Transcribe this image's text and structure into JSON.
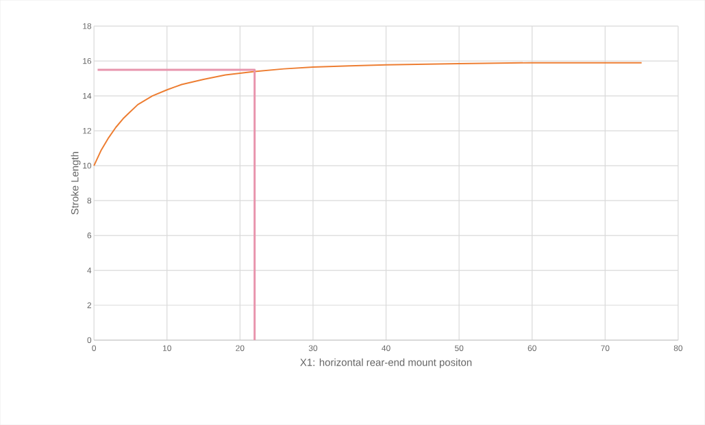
{
  "chart_data": {
    "type": "line",
    "xlabel": "X1: horizontal rear-end mount positon",
    "ylabel": "Stroke Length",
    "xlim": [
      0,
      80
    ],
    "ylim": [
      0,
      18
    ],
    "xticks": [
      0,
      10,
      20,
      30,
      40,
      50,
      60,
      70,
      80
    ],
    "yticks": [
      0,
      2,
      4,
      6,
      8,
      10,
      12,
      14,
      16,
      18
    ],
    "grid": true,
    "series": [
      {
        "color": "#ed7d31",
        "x": [
          0,
          1,
          2,
          3,
          4,
          5,
          6,
          8,
          10,
          12,
          15,
          18,
          22,
          26,
          30,
          35,
          40,
          50,
          60,
          75
        ],
        "values": [
          10,
          10.9,
          11.6,
          12.2,
          12.7,
          13.1,
          13.5,
          14.0,
          14.35,
          14.65,
          14.95,
          15.2,
          15.4,
          15.55,
          15.65,
          15.72,
          15.78,
          15.85,
          15.9,
          15.9
        ]
      },
      {
        "color": "#e895ad",
        "x": [
          0.5,
          22,
          22
        ],
        "values": [
          15.5,
          15.5,
          0
        ]
      }
    ]
  }
}
